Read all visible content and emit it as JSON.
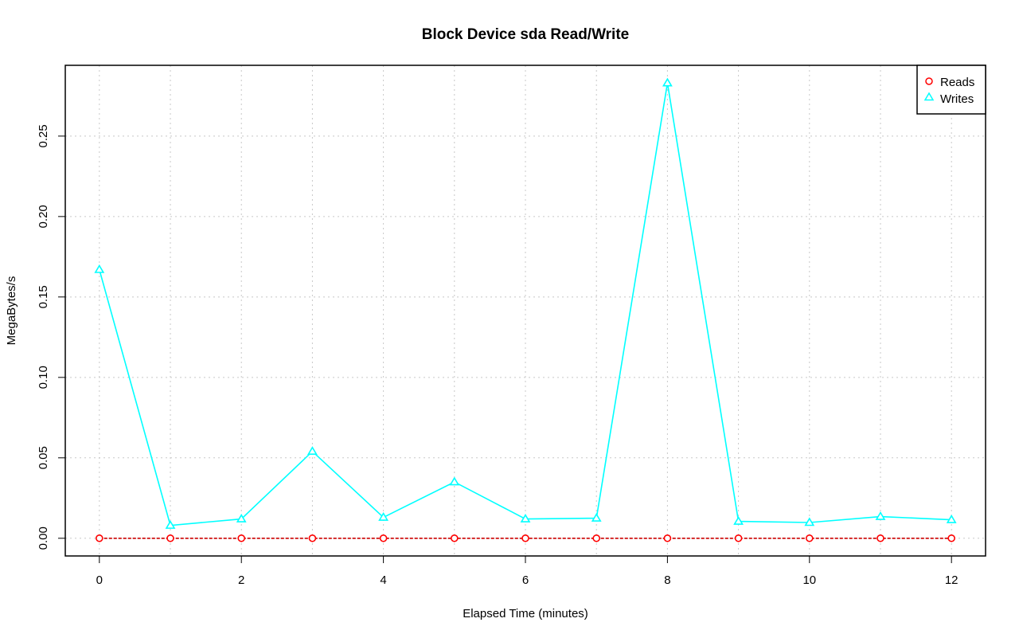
{
  "chart_data": {
    "type": "line",
    "title": "Block Device sda Read/Write",
    "xlabel": "Elapsed Time (minutes)",
    "ylabel": "MegaBytes/s",
    "x": [
      0,
      1,
      2,
      3,
      4,
      5,
      6,
      7,
      8,
      9,
      10,
      11,
      12
    ],
    "xlim": [
      -0.48,
      12.48
    ],
    "ylim": [
      -0.011,
      0.294
    ],
    "x_ticks": [
      "0",
      "2",
      "4",
      "6",
      "8",
      "10",
      "12"
    ],
    "x_tick_values": [
      0,
      2,
      4,
      6,
      8,
      10,
      12
    ],
    "y_ticks": [
      "0.00",
      "0.05",
      "0.10",
      "0.15",
      "0.20",
      "0.25"
    ],
    "y_tick_values": [
      0,
      0.05,
      0.1,
      0.15,
      0.2,
      0.25
    ],
    "grid": true,
    "legend_position": "top-right",
    "series": [
      {
        "name": "Reads",
        "color": "#ff0000",
        "marker": "circle",
        "line_style": "dashed",
        "values": [
          0.0,
          0.0,
          0.0,
          0.0,
          0.0,
          0.0,
          0.0,
          0.0,
          0.0,
          0.0,
          0.0,
          0.0,
          0.0
        ]
      },
      {
        "name": "Writes",
        "color": "#00ffff",
        "marker": "triangle",
        "line_style": "solid",
        "values": [
          0.167,
          0.008,
          0.012,
          0.054,
          0.013,
          0.035,
          0.012,
          0.0125,
          0.283,
          0.0105,
          0.0098,
          0.0135,
          0.0115
        ]
      }
    ]
  }
}
